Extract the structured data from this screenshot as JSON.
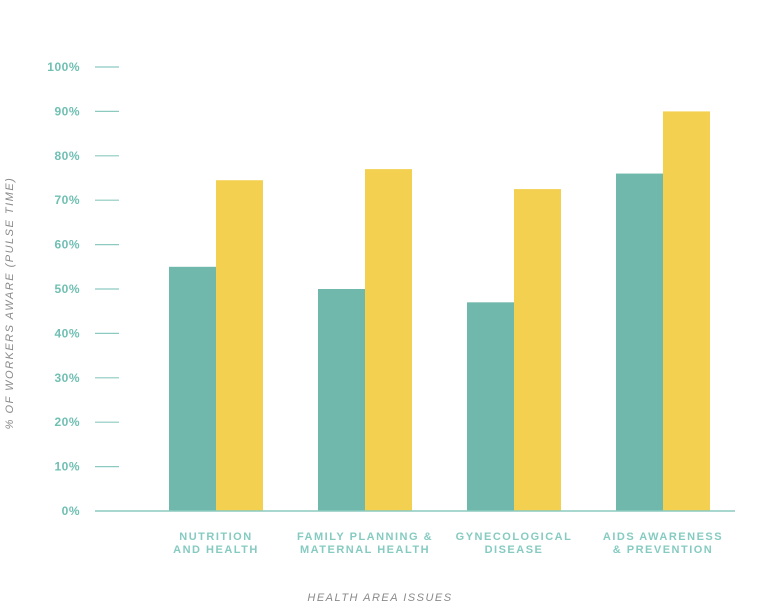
{
  "chart_data": {
    "type": "bar",
    "xlabel": "HEALTH AREA ISSUES",
    "ylabel": "% OF WORKERS AWARE (PULSE TIME)",
    "ylim": [
      0,
      100
    ],
    "yticks": [
      "0%",
      "10%",
      "20%",
      "30%",
      "40%",
      "50%",
      "60%",
      "70%",
      "80%",
      "90%",
      "100%"
    ],
    "categories": [
      [
        "NUTRITION",
        "AND HEALTH"
      ],
      [
        "FAMILY PLANNING &",
        "MATERNAL HEALTH"
      ],
      [
        "GYNECOLOGICAL",
        "DISEASE"
      ],
      [
        "AIDS AWARENESS",
        "& PREVENTION"
      ]
    ],
    "series": [
      {
        "values": [
          55,
          50,
          47,
          76
        ],
        "color": "#70b8ac"
      },
      {
        "values": [
          74.5,
          77,
          72.5,
          90
        ],
        "color": "#f3d04f"
      }
    ],
    "grid": false,
    "legend": "none"
  },
  "colors": {
    "tick_text": "#6fbfb3",
    "axis_line": "#8ccac0",
    "category_text": "#86cbc1",
    "axis_title_text": "#8a8a8a"
  }
}
